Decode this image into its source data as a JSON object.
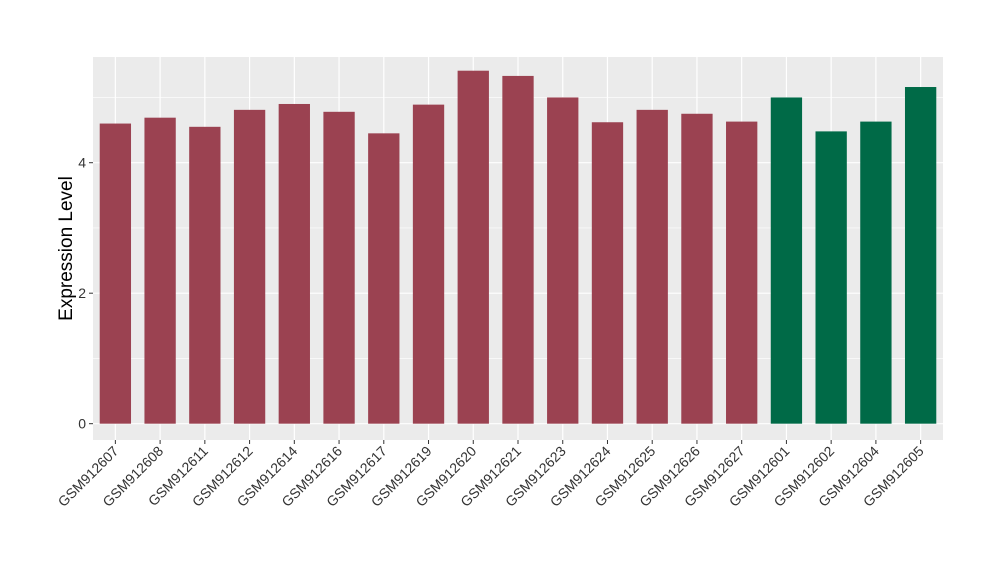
{
  "chart_data": {
    "type": "bar",
    "title": "",
    "xlabel": "",
    "ylabel": "Expression Level",
    "ylim": [
      -0.25,
      5.62
    ],
    "yticks": [
      0,
      2,
      4
    ],
    "grid": true,
    "legend": "none",
    "categories": [
      "GSM912607",
      "GSM912608",
      "GSM912611",
      "GSM912612",
      "GSM912614",
      "GSM912616",
      "GSM912617",
      "GSM912619",
      "GSM912620",
      "GSM912621",
      "GSM912623",
      "GSM912624",
      "GSM912625",
      "GSM912626",
      "GSM912627",
      "GSM912601",
      "GSM912602",
      "GSM912604",
      "GSM912605"
    ],
    "values": [
      4.6,
      4.69,
      4.55,
      4.81,
      4.9,
      4.78,
      4.45,
      4.89,
      5.41,
      5.33,
      5.0,
      4.62,
      4.81,
      4.75,
      4.63,
      5.0,
      4.48,
      4.63,
      5.16
    ],
    "bar_colors": [
      "#9b4251",
      "#9b4251",
      "#9b4251",
      "#9b4251",
      "#9b4251",
      "#9b4251",
      "#9b4251",
      "#9b4251",
      "#9b4251",
      "#9b4251",
      "#9b4251",
      "#9b4251",
      "#9b4251",
      "#9b4251",
      "#9b4251",
      "#006a47",
      "#006a47",
      "#006a47",
      "#006a47"
    ],
    "panel_background": "#ebebeb",
    "grid_color": "#ffffff"
  }
}
